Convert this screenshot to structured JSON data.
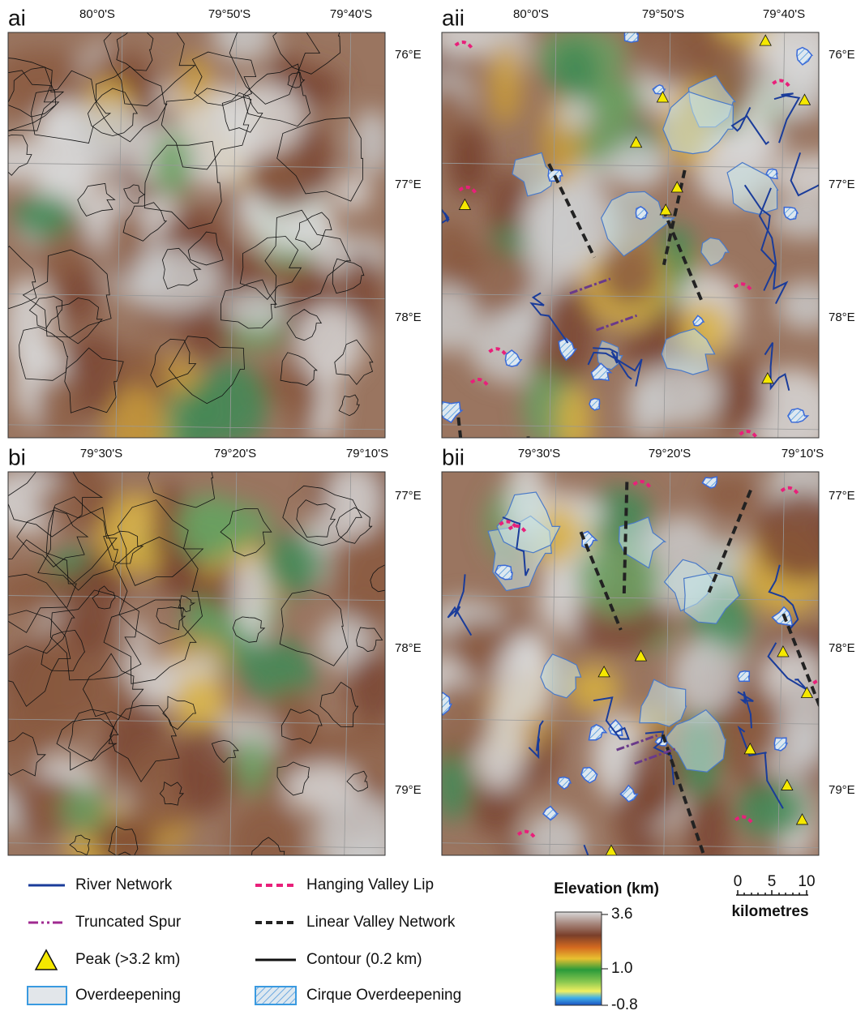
{
  "panels": [
    {
      "label": "ai",
      "lat_labels": [
        "80°0'S",
        "79°50'S",
        "79°40'S"
      ],
      "lon_labels": [
        "76°E",
        "77°E",
        "78°E"
      ]
    },
    {
      "label": "aii",
      "lat_labels": [
        "80°0'S",
        "79°50'S",
        "79°40'S"
      ],
      "lon_labels": [
        "76°E",
        "77°E",
        "78°E"
      ]
    },
    {
      "label": "bi",
      "lat_labels": [
        "79°30'S",
        "79°20'S",
        "79°10'S"
      ],
      "lon_labels": [
        "77°E",
        "78°E",
        "79°E"
      ]
    },
    {
      "label": "bii",
      "lat_labels": [
        "79°30'S",
        "79°20'S",
        "79°10'S"
      ],
      "lon_labels": [
        "77°E",
        "78°E",
        "79°E"
      ]
    }
  ],
  "legend": {
    "items": [
      {
        "label": "River Network"
      },
      {
        "label": "Truncated Spur"
      },
      {
        "label": "Peak (>3.2 km)"
      },
      {
        "label": "Overdeepening"
      },
      {
        "label": "Hanging Valley Lip"
      },
      {
        "label": "Linear Valley Network"
      },
      {
        "label": "Contour (0.2 km)"
      },
      {
        "label": "Cirque Overdeepening"
      }
    ]
  },
  "colorbar": {
    "title": "Elevation (km)",
    "ticks": [
      "3.6",
      "1.0",
      "-0.8"
    ]
  },
  "scale": {
    "ticks": [
      "0",
      "5",
      "10"
    ],
    "unit": "kilometres"
  }
}
